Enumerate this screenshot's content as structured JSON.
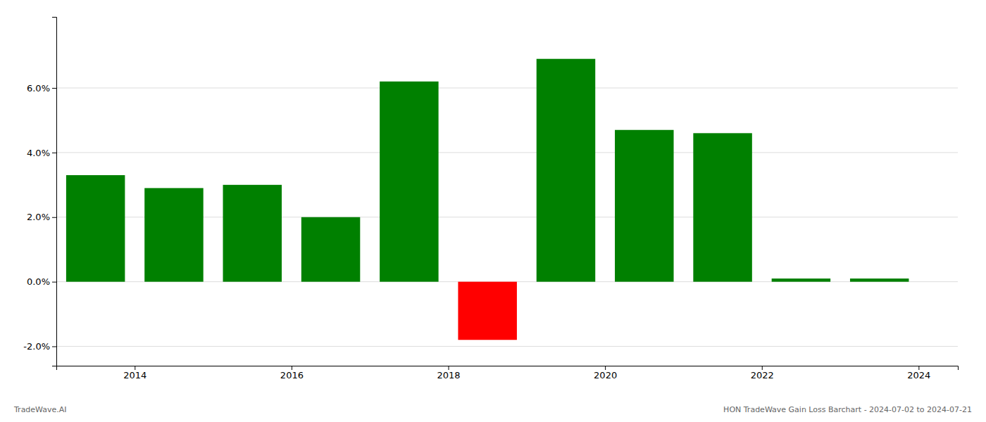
{
  "chart_data": {
    "type": "bar",
    "x": [
      2013.5,
      2014.5,
      2015.5,
      2016.5,
      2017.5,
      2018.5,
      2019.5,
      2020.5,
      2021.5,
      2022.5,
      2023.5
    ],
    "values": [
      0.033,
      0.029,
      0.03,
      0.02,
      0.062,
      -0.018,
      0.069,
      0.047,
      0.046,
      0.001,
      0.001
    ],
    "colors": [
      "#008000",
      "#008000",
      "#008000",
      "#008000",
      "#008000",
      "#ff0000",
      "#008000",
      "#008000",
      "#008000",
      "#008000",
      "#008000"
    ],
    "xlim": [
      2013.0,
      2024.5
    ],
    "xticks": [
      2014,
      2016,
      2018,
      2020,
      2022,
      2024
    ],
    "ylim": [
      -0.026,
      0.082
    ],
    "yticks": [
      {
        "value": -0.02,
        "label": "-2.0%"
      },
      {
        "value": 0.0,
        "label": "0.0%"
      },
      {
        "value": 0.02,
        "label": "2.0%"
      },
      {
        "value": 0.04,
        "label": "4.0%"
      },
      {
        "value": 0.06,
        "label": "6.0%"
      }
    ],
    "grid": true,
    "annotations": [
      "TradeWave.AI",
      "HON TradeWave Gain Loss Barchart - 2024-07-02 to 2024-07-21"
    ]
  }
}
